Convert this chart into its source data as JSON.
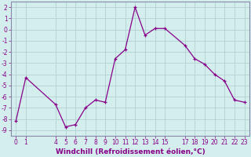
{
  "xlabel": "Windchill (Refroidissement éolien,°C)",
  "x": [
    0,
    1,
    4,
    5,
    6,
    7,
    8,
    9,
    10,
    11,
    12,
    13,
    14,
    15,
    17,
    18,
    19,
    20,
    21,
    22,
    23
  ],
  "y": [
    -8.2,
    -4.3,
    -6.7,
    -8.7,
    -8.5,
    -7.0,
    -6.3,
    -6.5,
    -2.6,
    -1.8,
    2.0,
    -0.5,
    0.1,
    0.1,
    -1.4,
    -2.6,
    -3.1,
    -4.0,
    -4.6,
    -6.3,
    -6.5
  ],
  "line_color": "#880088",
  "marker": "+",
  "bg_color": "#d4eeee",
  "grid_color": "#aacccc",
  "spine_color": "#8888aa",
  "ylim": [
    -9.5,
    2.5
  ],
  "xlim": [
    -0.5,
    23.5
  ],
  "yticks": [
    2,
    1,
    0,
    -1,
    -2,
    -3,
    -4,
    -5,
    -6,
    -7,
    -8,
    -9
  ],
  "xticks": [
    0,
    1,
    4,
    5,
    6,
    7,
    8,
    9,
    10,
    11,
    12,
    13,
    14,
    15,
    17,
    18,
    19,
    20,
    21,
    22,
    23
  ],
  "tick_fontsize": 5.5,
  "xlabel_fontsize": 6.5
}
